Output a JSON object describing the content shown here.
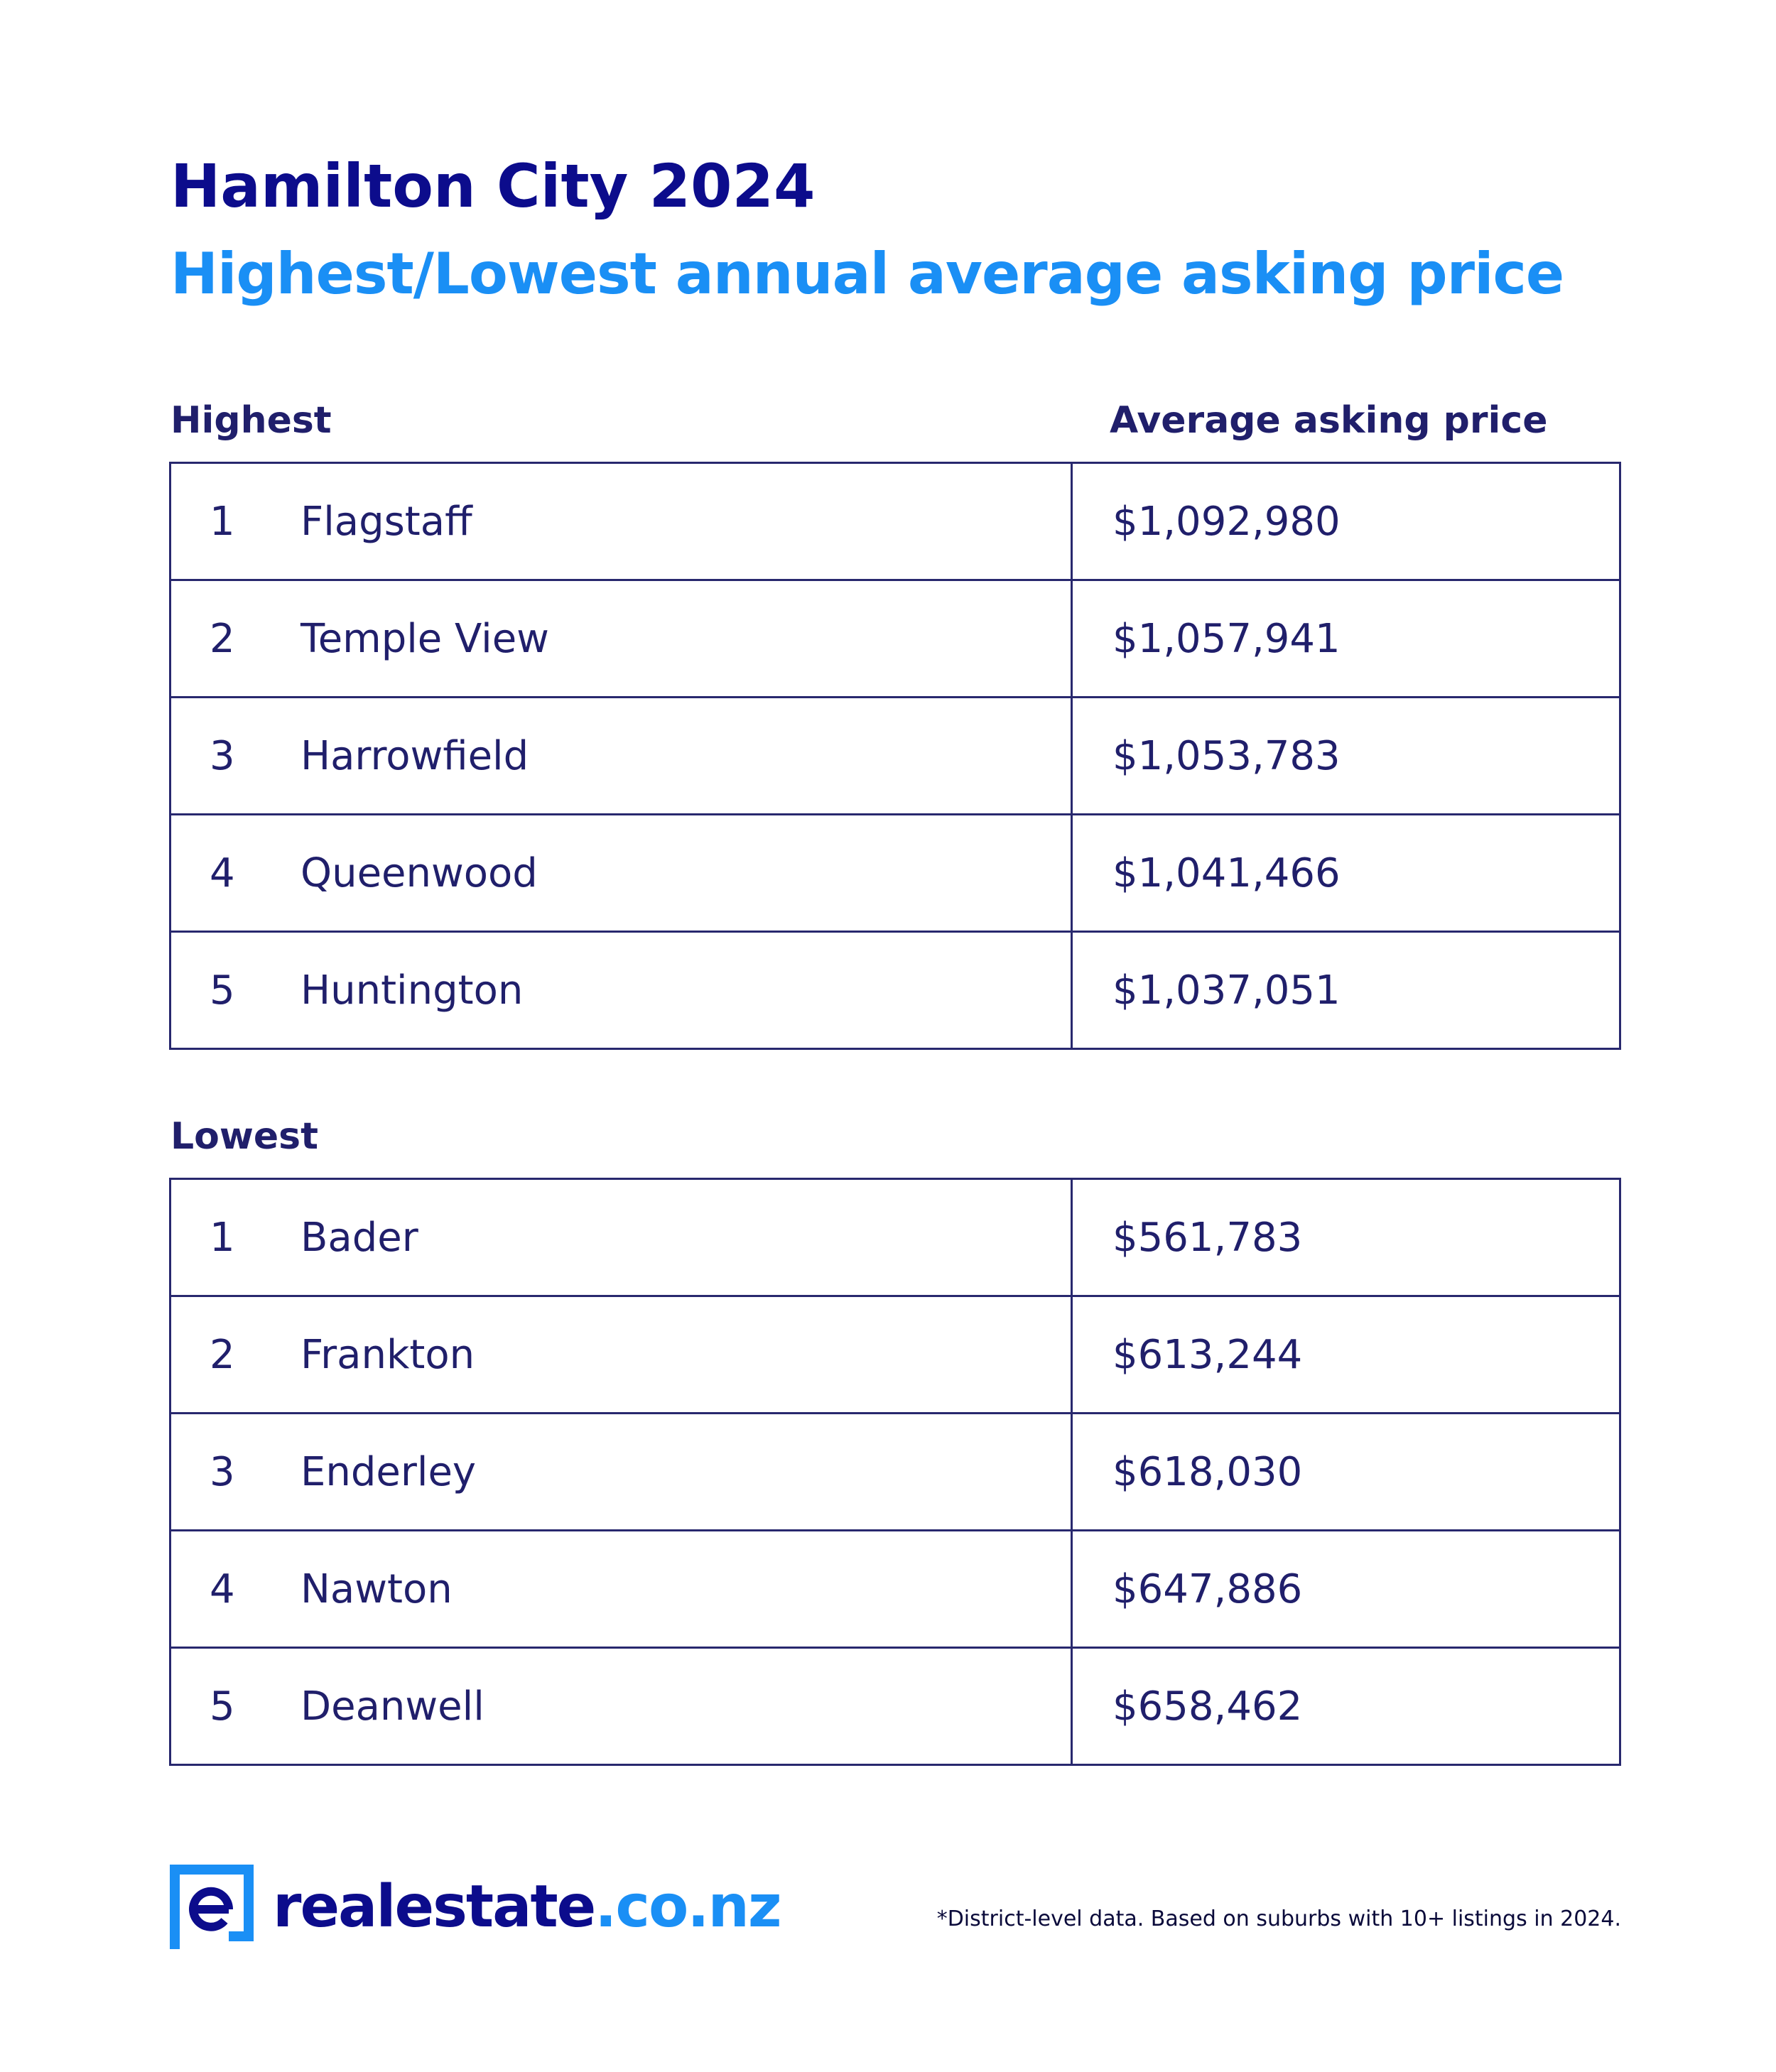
{
  "header": {
    "title": "Hamilton City 2024",
    "subtitle": "Highest/Lowest annual average asking price"
  },
  "highest": {
    "label": "Highest",
    "column_label": "Average asking price",
    "rows": [
      {
        "rank": "1",
        "suburb": "Flagstaff",
        "price": "$1,092,980"
      },
      {
        "rank": "2",
        "suburb": "Temple View",
        "price": "$1,057,941"
      },
      {
        "rank": "3",
        "suburb": "Harrowfield",
        "price": "$1,053,783"
      },
      {
        "rank": "4",
        "suburb": "Queenwood",
        "price": "$1,041,466"
      },
      {
        "rank": "5",
        "suburb": "Huntington",
        "price": "$1,037,051"
      }
    ]
  },
  "lowest": {
    "label": "Lowest",
    "rows": [
      {
        "rank": "1",
        "suburb": "Bader",
        "price": "$561,783"
      },
      {
        "rank": "2",
        "suburb": "Frankton",
        "price": "$613,244"
      },
      {
        "rank": "3",
        "suburb": "Enderley",
        "price": "$618,030"
      },
      {
        "rank": "4",
        "suburb": "Nawton",
        "price": "$647,886"
      },
      {
        "rank": "5",
        "suburb": "Deanwell",
        "price": "$658,462"
      }
    ]
  },
  "footer": {
    "logo_name": "realestate",
    "logo_tld": ".co.nz",
    "logo_icon": "realestate-logo-icon",
    "footnote": "*District-level data. Based on suburbs with 10+ listings in 2024."
  },
  "colors": {
    "title": "#0c0c8c",
    "subtitle": "#1a8ff5",
    "text": "#201f6b",
    "border": "#28286e"
  }
}
